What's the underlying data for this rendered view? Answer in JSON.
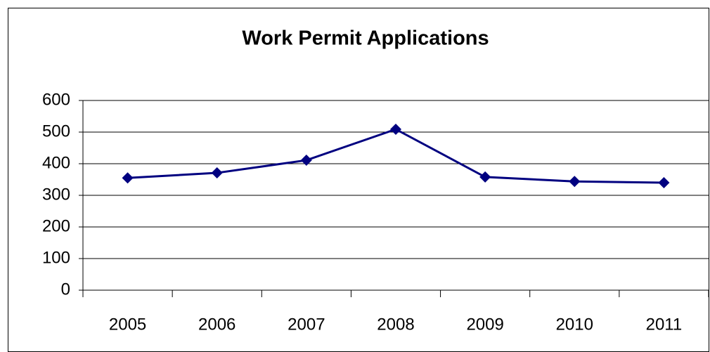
{
  "chart_data": {
    "type": "line",
    "title": "Work Permit Applications",
    "categories": [
      "2005",
      "2006",
      "2007",
      "2008",
      "2009",
      "2010",
      "2011"
    ],
    "series": [
      {
        "name": "Work Permit Applications",
        "color": "#000080",
        "values": [
          355,
          371,
          411,
          509,
          358,
          344,
          340
        ]
      }
    ],
    "ylim": [
      0,
      600
    ],
    "yticks": [
      0,
      100,
      200,
      300,
      400,
      500,
      600
    ],
    "grid": true
  }
}
